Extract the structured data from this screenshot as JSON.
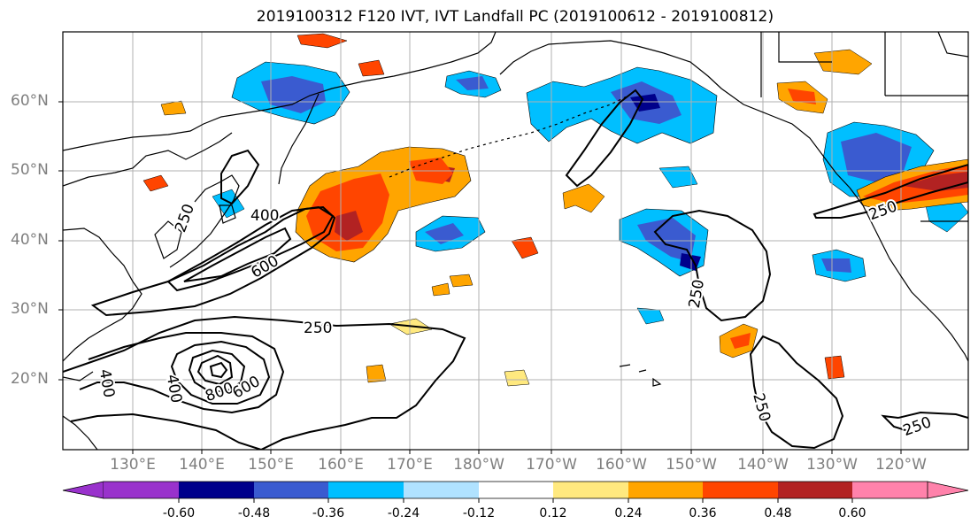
{
  "title": "2019100312 F120 IVT, IVT Landfall PC (2019100612 - 2019100812)",
  "lat_labels": [
    "60°N",
    "50°N",
    "40°N",
    "30°N",
    "20°N"
  ],
  "lon_labels": [
    "130°E",
    "140°E",
    "150°E",
    "160°E",
    "170°E",
    "180°W",
    "170°W",
    "160°W",
    "150°W",
    "140°W",
    "130°W",
    "120°W"
  ],
  "contour_labels": [
    "400",
    "600",
    "250",
    "400",
    "400",
    "800",
    "600",
    "250",
    "250",
    "250",
    "250",
    "250"
  ],
  "colorbar": {
    "ticks": [
      "-0.60",
      "-0.48",
      "-0.36",
      "-0.24",
      "-0.12",
      "0.12",
      "0.24",
      "0.36",
      "0.48",
      "0.60"
    ],
    "colors": [
      "#9932cc",
      "#00008b",
      "#3a5bd0",
      "#00bfff",
      "#b0e2ff",
      "#ffffff",
      "#ffe97f",
      "#ffa500",
      "#ff4500",
      "#b22222",
      "#ff82ab"
    ]
  }
}
